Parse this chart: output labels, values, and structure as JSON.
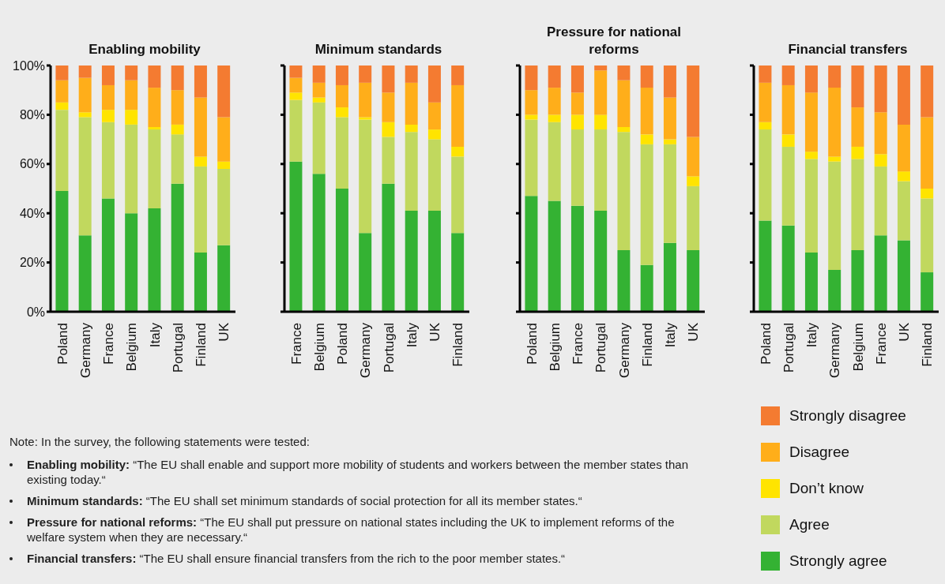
{
  "chart_data": [
    {
      "type": "bar",
      "stacked": true,
      "title": "Enabling mobility",
      "categories": [
        "Poland",
        "Germany",
        "France",
        "Belgium",
        "Italy",
        "Portugal",
        "Finland",
        "UK"
      ],
      "ylim": [
        0,
        100
      ],
      "yticks": [
        {
          "value": 0,
          "label": "0%"
        },
        {
          "value": 20,
          "label": "20%"
        },
        {
          "value": 40,
          "label": "40%"
        },
        {
          "value": 60,
          "label": "60%"
        },
        {
          "value": 80,
          "label": "80%"
        },
        {
          "value": 100,
          "label": "100%"
        }
      ],
      "grid": false,
      "legend": "bottom right",
      "series": [
        {
          "name": "Strongly agree",
          "color": "#34b233",
          "values": [
            49,
            31,
            46,
            40,
            42,
            52,
            24,
            27
          ]
        },
        {
          "name": "Agree",
          "color": "#c1d85e",
          "values": [
            33,
            48,
            31,
            36,
            32,
            20,
            35,
            31
          ]
        },
        {
          "name": "Don’t know",
          "color": "#ffe400",
          "values": [
            3,
            2,
            5,
            6,
            1,
            4,
            4,
            3
          ]
        },
        {
          "name": "Disagree",
          "color": "#ffae1a",
          "values": [
            9,
            14,
            10,
            12,
            16,
            14,
            24,
            18
          ]
        },
        {
          "name": "Strongly disagree",
          "color": "#f47b31",
          "values": [
            6,
            5,
            8,
            6,
            9,
            10,
            13,
            21
          ]
        }
      ],
      "annotations": [
        "Note: In the survey, the following statements were tested:",
        "Enabling mobility: “The EU shall enable and support more mobility of students and workers between the member states than existing today.“",
        "Minimum standards: “The EU shall set minimum standards of social protection for all its member states.“",
        "Pressure for national reforms: “The EU shall put pressure on national states including the UK to implement reforms of the welfare system when they are necessary.“",
        "Financial transfers: “The EU shall ensure financial transfers from the rich to the poor member states.“"
      ]
    },
    {
      "type": "bar",
      "stacked": true,
      "title": "Minimum standards",
      "categories": [
        "France",
        "Belgium",
        "Poland",
        "Germany",
        "Portugal",
        "Italy",
        "UK",
        "Finland"
      ],
      "ylim": [
        0,
        100
      ],
      "yticks": [
        {
          "value": 0,
          "label": null
        },
        {
          "value": 20,
          "label": null
        },
        {
          "value": 40,
          "label": null
        },
        {
          "value": 60,
          "label": null
        },
        {
          "value": 80,
          "label": null
        },
        {
          "value": 100,
          "label": null
        }
      ],
      "tick_labels": "x",
      "grid": false,
      "series": [
        {
          "color": "#34b233",
          "values": [
            61,
            56,
            50,
            32,
            52,
            41,
            41,
            32
          ]
        },
        {
          "color": "#c1d85e",
          "values": [
            25,
            29,
            29,
            46,
            19,
            32,
            29,
            31
          ]
        },
        {
          "color": "#ffe400",
          "values": [
            3,
            2,
            4,
            1,
            6,
            3,
            4,
            4
          ]
        },
        {
          "color": "#ffae1a",
          "values": [
            6,
            6,
            9,
            14,
            12,
            17,
            11,
            25
          ]
        },
        {
          "color": "#f47b31",
          "values": [
            5,
            7,
            8,
            7,
            11,
            7,
            15,
            8
          ]
        }
      ]
    },
    {
      "type": "bar",
      "stacked": true,
      "title": "Pressure for national reforms",
      "categories": [
        "Poland",
        "Belgium",
        "France",
        "Portugal",
        "Germany",
        "Finland",
        "Italy",
        "UK"
      ],
      "ylim": [
        0,
        100
      ],
      "yticks": [
        {
          "value": 0,
          "label": null
        },
        {
          "value": 20,
          "label": null
        },
        {
          "value": 40,
          "label": null
        },
        {
          "value": 60,
          "label": null
        },
        {
          "value": 80,
          "label": null
        },
        {
          "value": 100,
          "label": null
        }
      ],
      "tick_labels": "x",
      "grid": false,
      "series": [
        {
          "color": "#34b233",
          "values": [
            47,
            45,
            43,
            41,
            25,
            19,
            28,
            25
          ]
        },
        {
          "color": "#c1d85e",
          "values": [
            31,
            32,
            31,
            33,
            48,
            49,
            40,
            26
          ]
        },
        {
          "color": "#ffe400",
          "values": [
            2,
            3,
            6,
            6,
            2,
            4,
            2,
            4
          ]
        },
        {
          "color": "#ffae1a",
          "values": [
            10,
            11,
            9,
            18,
            19,
            19,
            17,
            16
          ]
        },
        {
          "color": "#f47b31",
          "values": [
            10,
            9,
            11,
            2,
            6,
            9,
            13,
            29
          ]
        }
      ]
    },
    {
      "type": "bar",
      "stacked": true,
      "title": "Financial transfers",
      "categories": [
        "Poland",
        "Portugal",
        "Italy",
        "Germany",
        "Belgium",
        "France",
        "UK",
        "Finland"
      ],
      "ylim": [
        0,
        100
      ],
      "yticks": [
        {
          "value": 0,
          "label": null
        },
        {
          "value": 20,
          "label": null
        },
        {
          "value": 40,
          "label": null
        },
        {
          "value": 60,
          "label": null
        },
        {
          "value": 80,
          "label": null
        },
        {
          "value": 100,
          "label": null
        }
      ],
      "tick_labels": "x",
      "grid": false,
      "series": [
        {
          "color": "#34b233",
          "values": [
            37,
            35,
            24,
            17,
            25,
            31,
            29,
            16
          ]
        },
        {
          "color": "#c1d85e",
          "values": [
            37,
            32,
            38,
            44,
            37,
            28,
            24,
            30
          ]
        },
        {
          "color": "#ffe400",
          "values": [
            3,
            5,
            3,
            2,
            5,
            5,
            4,
            4
          ]
        },
        {
          "color": "#ffae1a",
          "values": [
            16,
            20,
            24,
            28,
            16,
            17,
            19,
            29
          ]
        },
        {
          "color": "#f47b31",
          "values": [
            7,
            8,
            11,
            9,
            17,
            19,
            24,
            21
          ]
        }
      ]
    }
  ]
}
